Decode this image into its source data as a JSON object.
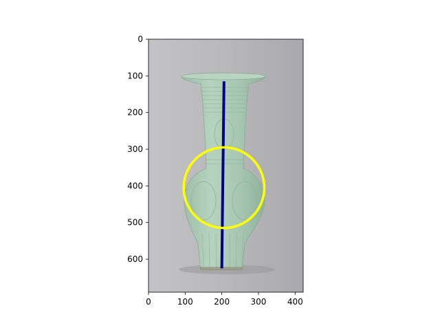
{
  "chart_data": {
    "type": "image",
    "title": "",
    "xlabel": "",
    "ylabel": "",
    "xlim": [
      0,
      422
    ],
    "ylim": [
      690,
      0
    ],
    "x_ticks": [
      {
        "value": 0,
        "label": "0"
      },
      {
        "value": 100,
        "label": "100"
      },
      {
        "value": 200,
        "label": "200"
      },
      {
        "value": 300,
        "label": "300"
      },
      {
        "value": 400,
        "label": "400"
      }
    ],
    "y_ticks": [
      {
        "value": 0,
        "label": "0"
      },
      {
        "value": 100,
        "label": "100"
      },
      {
        "value": 200,
        "label": "200"
      },
      {
        "value": 300,
        "label": "300"
      },
      {
        "value": 400,
        "label": "400"
      },
      {
        "value": 500,
        "label": "500"
      },
      {
        "value": 600,
        "label": "600"
      }
    ],
    "image_subject": "celadon-vase",
    "colors": {
      "background": "#bcbcbe",
      "vase": "#a9c7b2",
      "line": "#00008b",
      "circle": "#ffff00"
    },
    "overlays": {
      "line": {
        "x": [
          206,
          200
        ],
        "y": [
          115,
          625
        ],
        "color": "#00008b"
      },
      "circle": {
        "center": [
          206,
          405
        ],
        "radius": 110,
        "color": "#ffff00"
      }
    }
  }
}
